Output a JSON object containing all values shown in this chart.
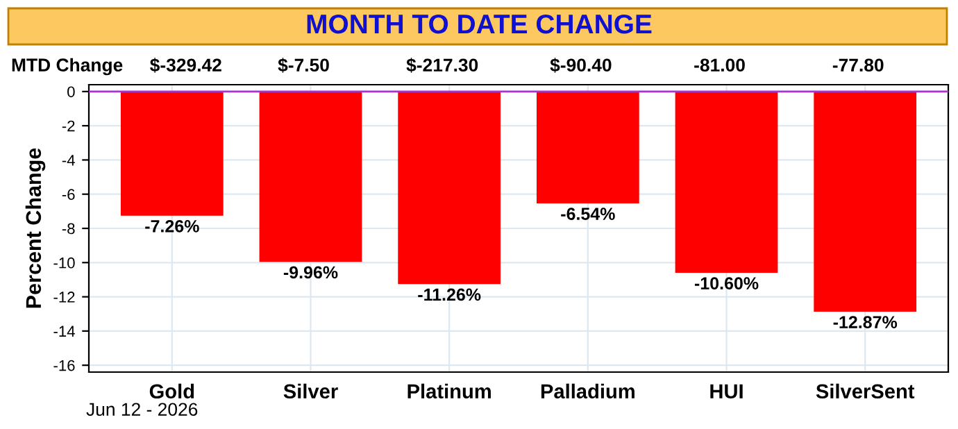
{
  "chart_data": {
    "type": "bar",
    "title": "MONTH TO DATE CHANGE",
    "ylabel": "Percent Change",
    "categories": [
      "Gold",
      "Silver",
      "Platinum",
      "Palladium",
      "HUI",
      "SilverSent"
    ],
    "values": [
      -7.26,
      -9.96,
      -11.26,
      -6.54,
      -10.6,
      -12.87
    ],
    "value_labels": [
      "-7.26%",
      "-9.96%",
      "-11.26%",
      "-6.54%",
      "-10.60%",
      "-12.87%"
    ],
    "color": "#ff0000",
    "ylim": [
      -16.4,
      0.4
    ],
    "yticks": [
      {
        "value": 0,
        "label": "0"
      },
      {
        "value": -2,
        "label": "-2"
      },
      {
        "value": -4,
        "label": "-4"
      },
      {
        "value": -6,
        "label": "-6"
      },
      {
        "value": -8,
        "label": "-8"
      },
      {
        "value": -10,
        "label": "-10"
      },
      {
        "value": -12,
        "label": "-12"
      },
      {
        "value": -14,
        "label": "-14"
      },
      {
        "value": -16,
        "label": "-16"
      }
    ],
    "grid": true,
    "legend": false,
    "ref_lines": [
      {
        "axis": "y",
        "value": 0,
        "color": "#aa33cc"
      }
    ],
    "annotations": [
      "MTD Change",
      "$-329.42",
      "$-7.50",
      "$-217.30",
      "$-90.40",
      "-81.00",
      "-77.80",
      "Jun 12 - 2026"
    ]
  }
}
